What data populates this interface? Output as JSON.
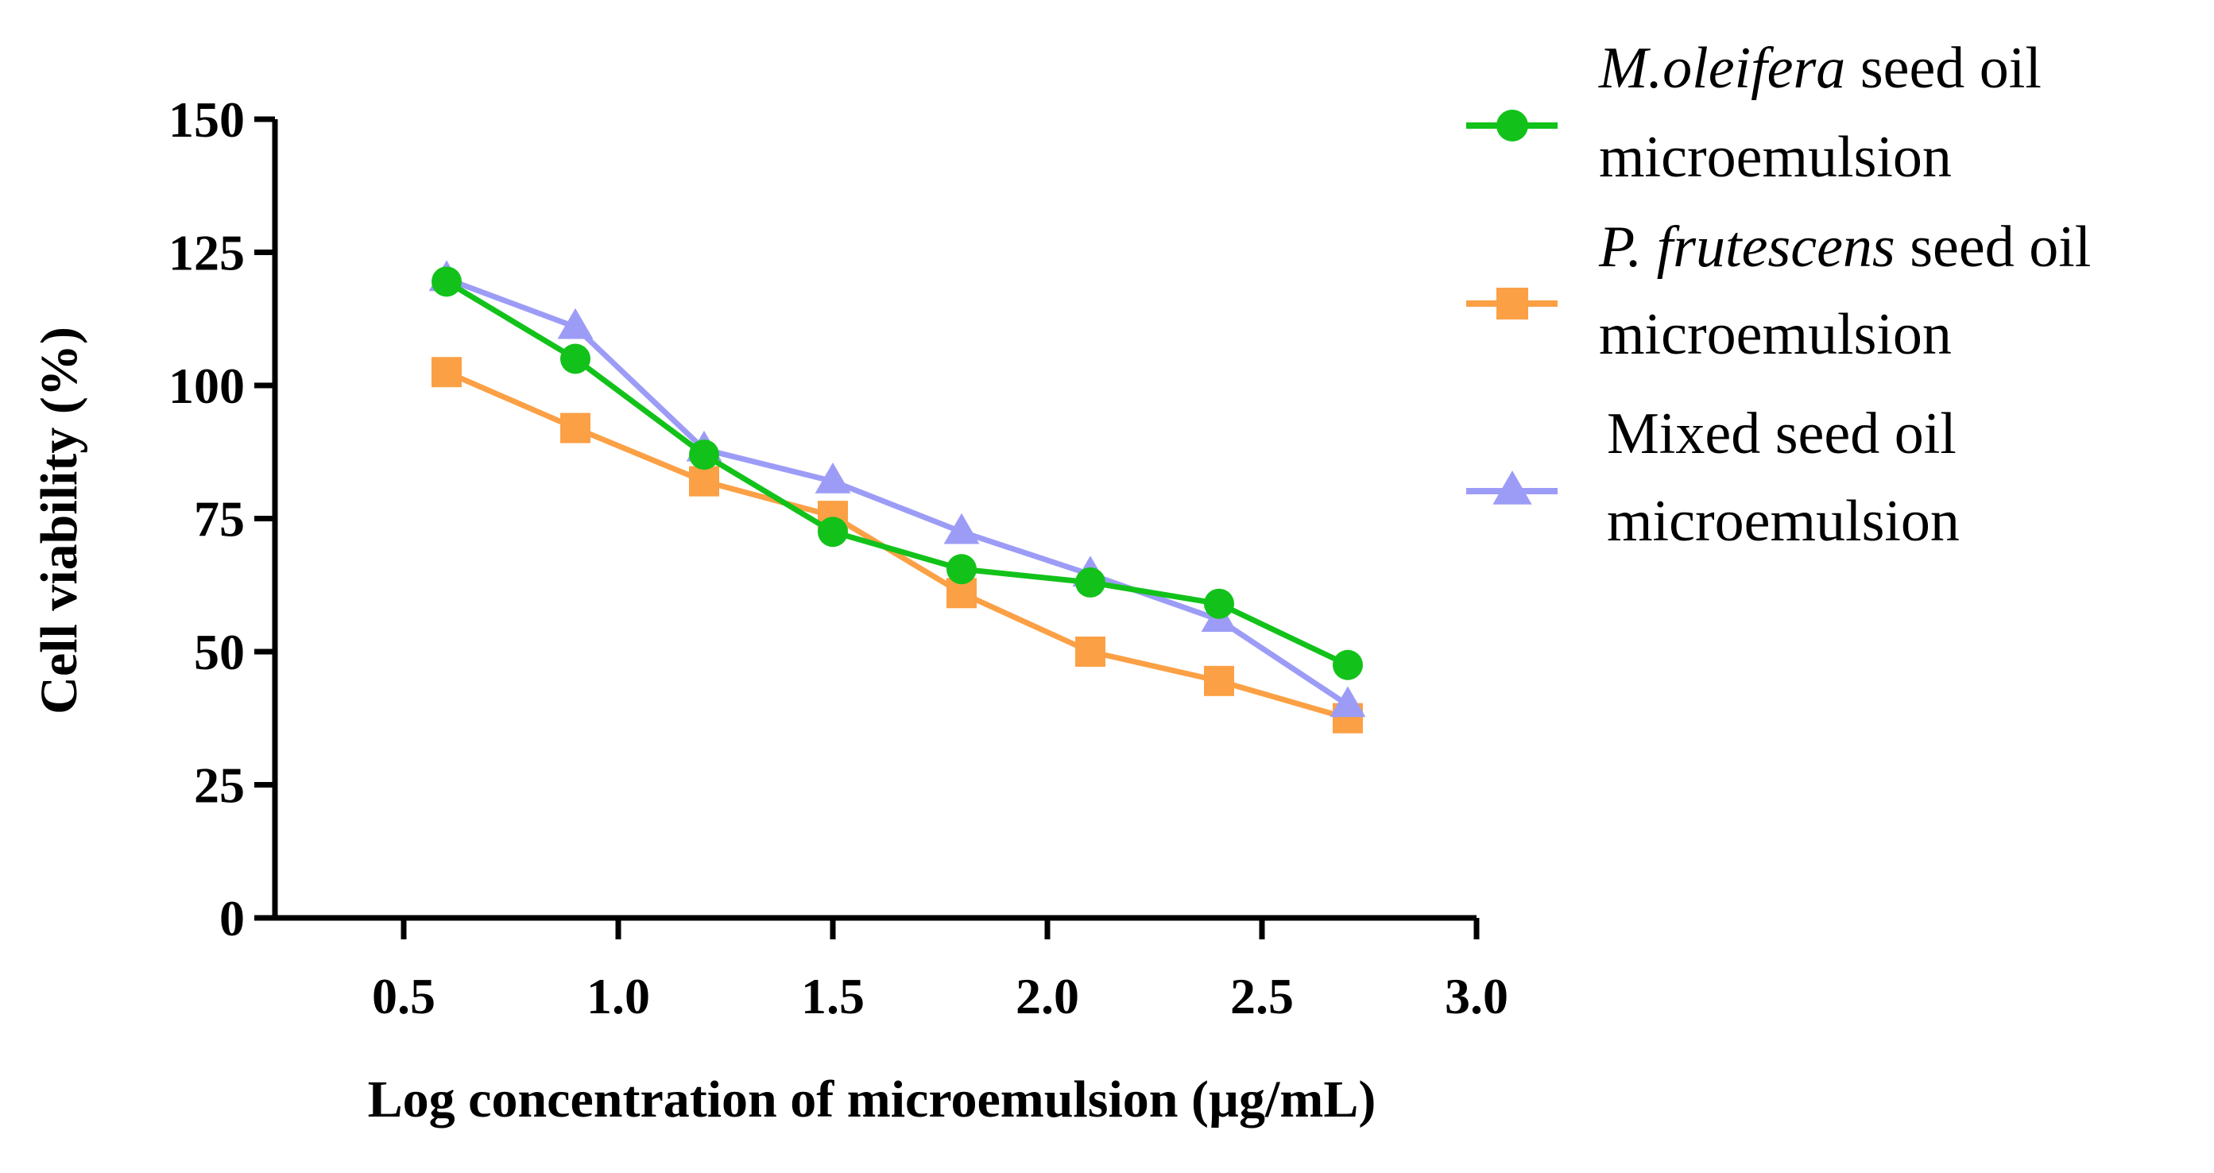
{
  "chart_data": {
    "type": "line",
    "title": "",
    "xlabel": "Log concentration of microemulsion (µg/mL)",
    "ylabel": "Cell viability (%)",
    "xlim": [
      0.2,
      3.0
    ],
    "ylim": [
      0,
      150
    ],
    "xticks": [
      0.5,
      1.0,
      1.5,
      2.0,
      2.5,
      3.0
    ],
    "xtick_labels": [
      "0.5",
      "1.0",
      "1.5",
      "2.0",
      "2.5",
      "3.0"
    ],
    "yticks": [
      0,
      25,
      50,
      75,
      100,
      125,
      150
    ],
    "ytick_labels": [
      "0",
      "25",
      "50",
      "75",
      "100",
      "125",
      "150"
    ],
    "grid": false,
    "legend_position": "top-right",
    "x": [
      0.6,
      0.9,
      1.2,
      1.5,
      1.8,
      2.1,
      2.4,
      2.7
    ],
    "series": [
      {
        "name_italic": "M.oleifera",
        "name_rest": " seed oil",
        "name_line2": "microemulsion",
        "marker": "circle",
        "color": "#12c21a",
        "values": [
          119.5,
          105,
          87,
          72.5,
          65.5,
          63,
          59,
          47.5
        ]
      },
      {
        "name_italic": "P. frutescens",
        "name_rest": " seed oil",
        "name_line2": "microemulsion",
        "marker": "square",
        "color": "#fba045",
        "values": [
          102.5,
          92,
          82,
          75.5,
          61,
          50,
          44.5,
          37.5
        ]
      },
      {
        "name_italic": "",
        "name_rest": "Mixed seed oil",
        "name_line2": "microemulsion",
        "marker": "triangle",
        "color": "#9c9cf7",
        "values": [
          120,
          111,
          88,
          82,
          72.5,
          64.5,
          56,
          40
        ]
      }
    ]
  }
}
